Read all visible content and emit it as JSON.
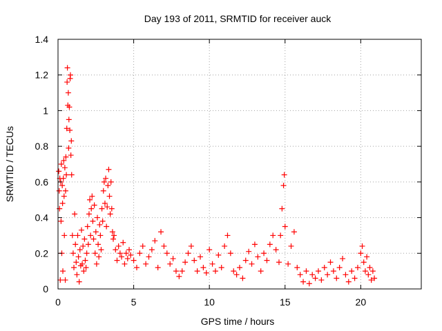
{
  "chart_data": {
    "type": "scatter",
    "title": "Day 193 of 2011, SRMTID for receiver auck",
    "xlabel": "GPS time / hours",
    "ylabel": "SRMTID / TECUs",
    "xlim": [
      0,
      24
    ],
    "ylim": [
      0,
      1.4
    ],
    "xticks": [
      0,
      5,
      10,
      15,
      20
    ],
    "yticks": [
      0,
      0.2,
      0.4,
      0.6,
      0.8,
      1,
      1.2,
      1.4
    ],
    "xtick_labels": [
      "0",
      "5",
      "10",
      "15",
      "20"
    ],
    "ytick_labels": [
      "0",
      "0.2",
      "0.4",
      "0.6",
      "0.8",
      "1",
      "1.2",
      "1.4"
    ],
    "grid": true,
    "marker": "+",
    "series": [
      {
        "name": "SRMTID",
        "color": "#ff0000",
        "points": [
          [
            0.05,
            0.66
          ],
          [
            0.08,
            0.55
          ],
          [
            0.1,
            0.45
          ],
          [
            0.12,
            0.62
          ],
          [
            0.15,
            0.05
          ],
          [
            0.18,
            0.6
          ],
          [
            0.2,
            0.38
          ],
          [
            0.22,
            0.7
          ],
          [
            0.25,
            0.2
          ],
          [
            0.28,
            0.58
          ],
          [
            0.3,
            0.48
          ],
          [
            0.32,
            0.1
          ],
          [
            0.35,
            0.62
          ],
          [
            0.38,
            0.72
          ],
          [
            0.4,
            0.52
          ],
          [
            0.42,
            0.3
          ],
          [
            0.45,
            0.68
          ],
          [
            0.48,
            0.05
          ],
          [
            0.5,
            0.55
          ],
          [
            0.52,
            0.74
          ],
          [
            0.55,
            0.64
          ],
          [
            0.58,
            0.9
          ],
          [
            0.6,
            1.16
          ],
          [
            0.62,
            1.24
          ],
          [
            0.65,
            1.03
          ],
          [
            0.68,
            1.1
          ],
          [
            0.7,
            0.79
          ],
          [
            0.72,
            0.95
          ],
          [
            0.75,
            1.02
          ],
          [
            0.78,
            0.89
          ],
          [
            0.8,
            1.18
          ],
          [
            0.82,
            1.2
          ],
          [
            0.85,
            0.75
          ],
          [
            0.88,
            0.83
          ],
          [
            0.9,
            0.64
          ],
          [
            0.95,
            0.3
          ],
          [
            1.0,
            0.2
          ],
          [
            1.05,
            0.12
          ],
          [
            1.1,
            0.42
          ],
          [
            1.15,
            0.25
          ],
          [
            1.2,
            0.15
          ],
          [
            1.25,
            0.08
          ],
          [
            1.3,
            0.3
          ],
          [
            1.35,
            0.18
          ],
          [
            1.4,
            0.04
          ],
          [
            1.45,
            0.22
          ],
          [
            1.5,
            0.13
          ],
          [
            1.55,
            0.33
          ],
          [
            1.6,
            0.14
          ],
          [
            1.65,
            0.24
          ],
          [
            1.7,
            0.1
          ],
          [
            1.75,
            0.28
          ],
          [
            1.8,
            0.16
          ],
          [
            1.85,
            0.12
          ],
          [
            1.9,
            0.2
          ],
          [
            1.95,
            0.35
          ],
          [
            2.0,
            0.25
          ],
          [
            2.05,
            0.42
          ],
          [
            2.1,
            0.5
          ],
          [
            2.15,
            0.3
          ],
          [
            2.2,
            0.45
          ],
          [
            2.25,
            0.52
          ],
          [
            2.3,
            0.38
          ],
          [
            2.35,
            0.28
          ],
          [
            2.4,
            0.47
          ],
          [
            2.45,
            0.2
          ],
          [
            2.5,
            0.32
          ],
          [
            2.55,
            0.14
          ],
          [
            2.6,
            0.4
          ],
          [
            2.65,
            0.25
          ],
          [
            2.7,
            0.18
          ],
          [
            2.75,
            0.36
          ],
          [
            2.8,
            0.3
          ],
          [
            2.85,
            0.22
          ],
          [
            2.9,
            0.45
          ],
          [
            2.95,
            0.38
          ],
          [
            3.0,
            0.55
          ],
          [
            3.05,
            0.6
          ],
          [
            3.1,
            0.48
          ],
          [
            3.15,
            0.62
          ],
          [
            3.2,
            0.35
          ],
          [
            3.25,
            0.46
          ],
          [
            3.3,
            0.58
          ],
          [
            3.35,
            0.67
          ],
          [
            3.4,
            0.52
          ],
          [
            3.45,
            0.42
          ],
          [
            3.5,
            0.6
          ],
          [
            3.55,
            0.45
          ],
          [
            3.6,
            0.32
          ],
          [
            3.65,
            0.28
          ],
          [
            3.7,
            0.3
          ],
          [
            3.8,
            0.22
          ],
          [
            3.9,
            0.16
          ],
          [
            4.0,
            0.24
          ],
          [
            4.1,
            0.2
          ],
          [
            4.2,
            0.18
          ],
          [
            4.3,
            0.26
          ],
          [
            4.4,
            0.14
          ],
          [
            4.5,
            0.2
          ],
          [
            4.6,
            0.17
          ],
          [
            4.7,
            0.22
          ],
          [
            4.8,
            0.19
          ],
          [
            5.0,
            0.16
          ],
          [
            5.2,
            0.12
          ],
          [
            5.4,
            0.2
          ],
          [
            5.6,
            0.24
          ],
          [
            5.8,
            0.14
          ],
          [
            6.0,
            0.18
          ],
          [
            6.2,
            0.22
          ],
          [
            6.4,
            0.27
          ],
          [
            6.6,
            0.12
          ],
          [
            6.8,
            0.32
          ],
          [
            7.0,
            0.24
          ],
          [
            7.2,
            0.2
          ],
          [
            7.4,
            0.14
          ],
          [
            7.6,
            0.17
          ],
          [
            7.8,
            0.1
          ],
          [
            8.0,
            0.07
          ],
          [
            8.2,
            0.1
          ],
          [
            8.4,
            0.15
          ],
          [
            8.6,
            0.2
          ],
          [
            8.8,
            0.24
          ],
          [
            9.0,
            0.16
          ],
          [
            9.2,
            0.1
          ],
          [
            9.4,
            0.18
          ],
          [
            9.6,
            0.12
          ],
          [
            9.8,
            0.09
          ],
          [
            10.0,
            0.22
          ],
          [
            10.2,
            0.14
          ],
          [
            10.4,
            0.1
          ],
          [
            10.6,
            0.19
          ],
          [
            10.8,
            0.12
          ],
          [
            11.0,
            0.24
          ],
          [
            11.2,
            0.3
          ],
          [
            11.4,
            0.2
          ],
          [
            11.6,
            0.1
          ],
          [
            11.8,
            0.08
          ],
          [
            12.0,
            0.12
          ],
          [
            12.2,
            0.06
          ],
          [
            12.4,
            0.16
          ],
          [
            12.6,
            0.21
          ],
          [
            12.8,
            0.14
          ],
          [
            13.0,
            0.25
          ],
          [
            13.2,
            0.18
          ],
          [
            13.4,
            0.1
          ],
          [
            13.6,
            0.2
          ],
          [
            13.8,
            0.16
          ],
          [
            14.0,
            0.25
          ],
          [
            14.2,
            0.3
          ],
          [
            14.4,
            0.22
          ],
          [
            14.6,
            0.15
          ],
          [
            14.7,
            0.3
          ],
          [
            14.8,
            0.45
          ],
          [
            14.9,
            0.58
          ],
          [
            14.95,
            0.64
          ],
          [
            15.0,
            0.35
          ],
          [
            15.2,
            0.14
          ],
          [
            15.4,
            0.24
          ],
          [
            15.6,
            0.32
          ],
          [
            15.8,
            0.12
          ],
          [
            16.0,
            0.08
          ],
          [
            16.2,
            0.04
          ],
          [
            16.4,
            0.1
          ],
          [
            16.6,
            0.03
          ],
          [
            16.8,
            0.08
          ],
          [
            17.0,
            0.06
          ],
          [
            17.2,
            0.1
          ],
          [
            17.4,
            0.05
          ],
          [
            17.6,
            0.12
          ],
          [
            17.8,
            0.08
          ],
          [
            18.0,
            0.15
          ],
          [
            18.2,
            0.1
          ],
          [
            18.4,
            0.06
          ],
          [
            18.6,
            0.12
          ],
          [
            18.8,
            0.17
          ],
          [
            19.0,
            0.08
          ],
          [
            19.2,
            0.04
          ],
          [
            19.4,
            0.1
          ],
          [
            19.6,
            0.06
          ],
          [
            19.8,
            0.12
          ],
          [
            20.0,
            0.2
          ],
          [
            20.1,
            0.24
          ],
          [
            20.2,
            0.15
          ],
          [
            20.3,
            0.1
          ],
          [
            20.4,
            0.18
          ],
          [
            20.5,
            0.08
          ],
          [
            20.6,
            0.12
          ],
          [
            20.7,
            0.05
          ],
          [
            20.8,
            0.1
          ],
          [
            20.9,
            0.06
          ]
        ]
      }
    ]
  }
}
